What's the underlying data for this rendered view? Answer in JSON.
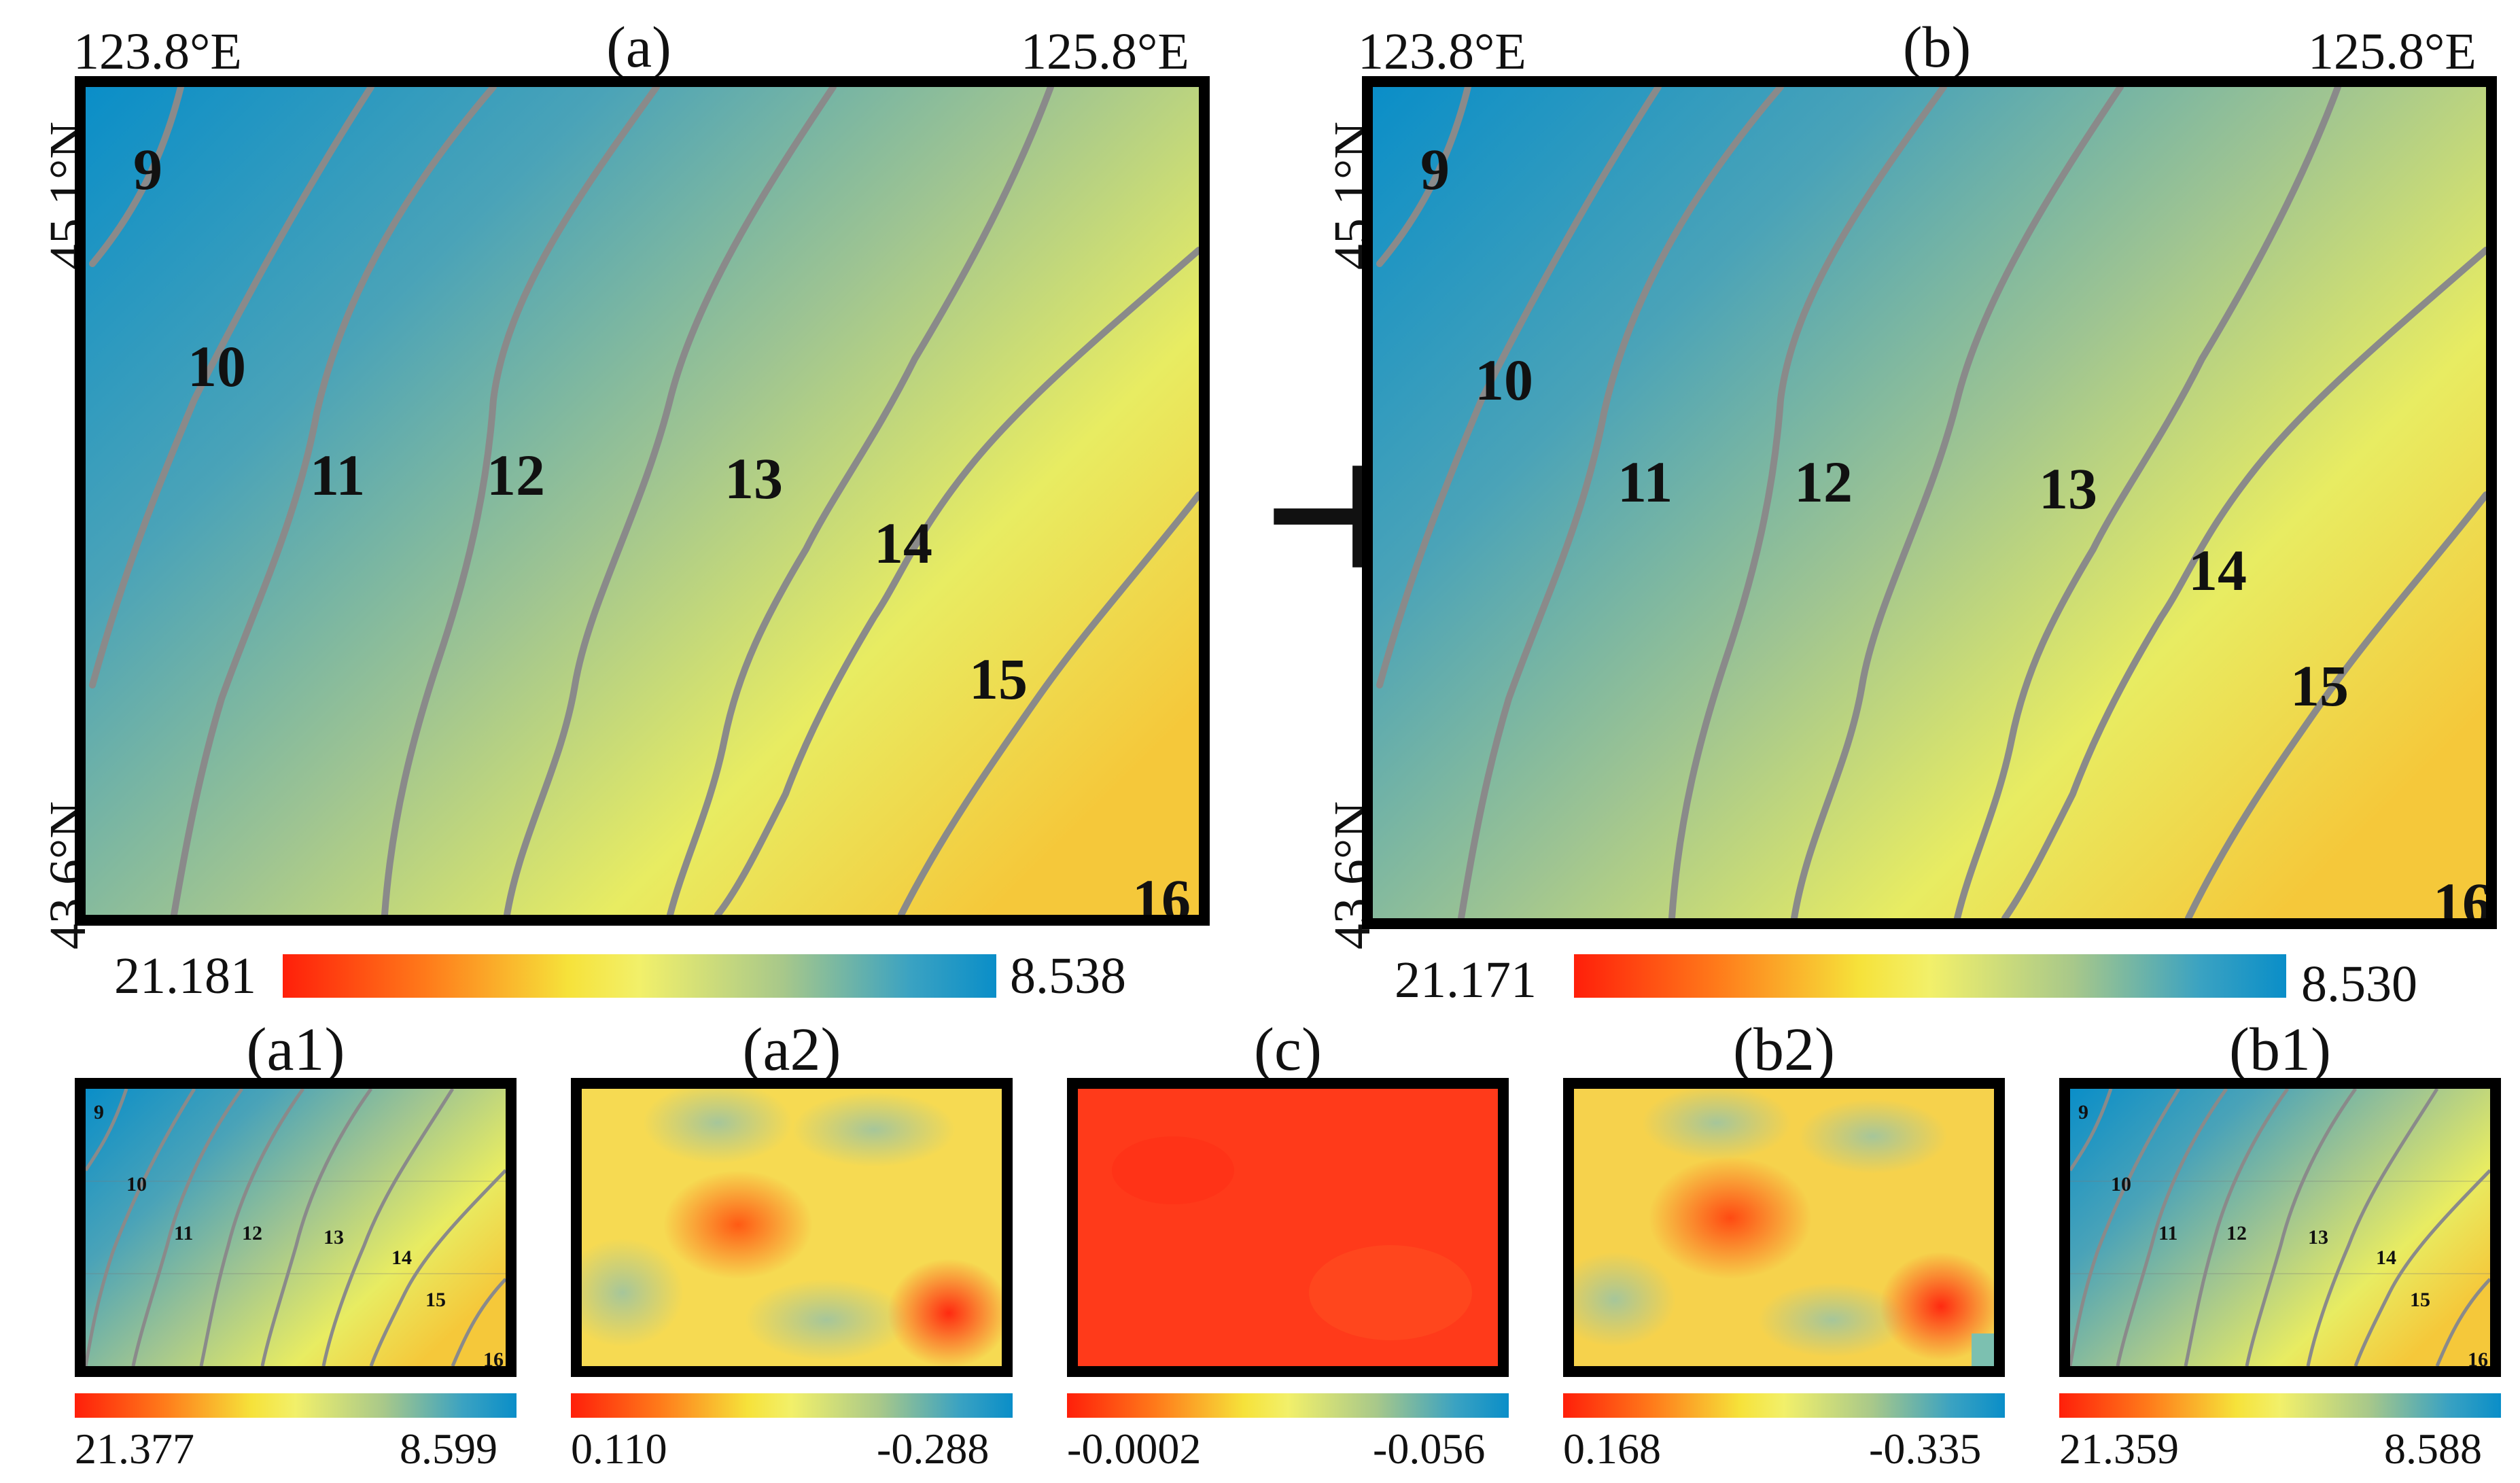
{
  "panel_a": {
    "title": "(a)",
    "lon_west": "123.8°E",
    "lon_east": "125.8°E",
    "lat_north": "45.1°N",
    "lat_south": "43.6°N",
    "contour_labels": [
      "9",
      "10",
      "11",
      "12",
      "13",
      "14",
      "15",
      "16"
    ],
    "colorbar_left": "21.181",
    "colorbar_right": "8.538"
  },
  "panel_b": {
    "title": "(b)",
    "lon_west": "123.8°E",
    "lon_east": "125.8°E",
    "lat_north": "45.1°N",
    "lat_south": "43.6°N",
    "contour_labels": [
      "9",
      "10",
      "11",
      "12",
      "13",
      "14",
      "15",
      "16"
    ],
    "colorbar_left": "21.171",
    "colorbar_right": "8.530"
  },
  "comparison_symbol": "⊥",
  "small_panels": [
    {
      "title": "(a1)",
      "colorbar_left": "21.377",
      "colorbar_right": "8.599",
      "kind": "contour",
      "contour_labels": [
        "9",
        "10",
        "11",
        "12",
        "13",
        "14",
        "15",
        "16"
      ]
    },
    {
      "title": "(a2)",
      "colorbar_left": "0.110",
      "colorbar_right": "-0.288",
      "kind": "residual"
    },
    {
      "title": "(c)",
      "colorbar_left": "-0.0002",
      "colorbar_right": "-0.056",
      "kind": "difference"
    },
    {
      "title": "(b2)",
      "colorbar_left": "0.168",
      "colorbar_right": "-0.335",
      "kind": "residual"
    },
    {
      "title": "(b1)",
      "colorbar_left": "21.359",
      "colorbar_right": "8.588",
      "kind": "contour",
      "contour_labels": [
        "9",
        "10",
        "11",
        "12",
        "13",
        "14",
        "15",
        "16"
      ]
    }
  ],
  "colors": {
    "map_blue": "#0a8ec8",
    "map_yellow": "#f7f25a",
    "map_orange": "#f5c83a",
    "contour_gray": "#8a8a8a",
    "residual_red": "#ff3a1a"
  }
}
